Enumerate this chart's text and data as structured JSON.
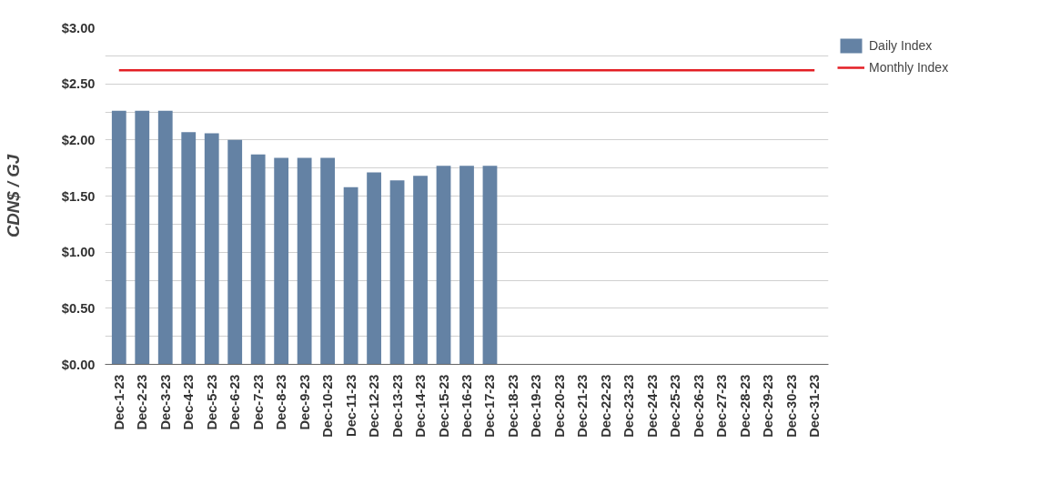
{
  "chart_data": {
    "type": "bar",
    "ylabel": "CDN$ / GJ",
    "categories": [
      "Dec-1-23",
      "Dec-2-23",
      "Dec-3-23",
      "Dec-4-23",
      "Dec-5-23",
      "Dec-6-23",
      "Dec-7-23",
      "Dec-8-23",
      "Dec-9-23",
      "Dec-10-23",
      "Dec-11-23",
      "Dec-12-23",
      "Dec-13-23",
      "Dec-14-23",
      "Dec-15-23",
      "Dec-16-23",
      "Dec-17-23",
      "Dec-18-23",
      "Dec-19-23",
      "Dec-20-23",
      "Dec-21-23",
      "Dec-22-23",
      "Dec-23-23",
      "Dec-24-23",
      "Dec-25-23",
      "Dec-26-23",
      "Dec-27-23",
      "Dec-28-23",
      "Dec-29-23",
      "Dec-30-23",
      "Dec-31-23"
    ],
    "series": [
      {
        "name": "Daily Index",
        "color": "#6482a4",
        "values": [
          2.26,
          2.26,
          2.26,
          2.07,
          2.06,
          2.0,
          1.87,
          1.84,
          1.84,
          1.84,
          1.58,
          1.71,
          1.64,
          1.68,
          1.77,
          1.77,
          1.77,
          null,
          null,
          null,
          null,
          null,
          null,
          null,
          null,
          null,
          null,
          null,
          null,
          null,
          null
        ]
      },
      {
        "name": "Monthly Index",
        "type": "line",
        "color": "#e31e24",
        "values": [
          2.62,
          2.62,
          2.62,
          2.62,
          2.62,
          2.62,
          2.62,
          2.62,
          2.62,
          2.62,
          2.62,
          2.62,
          2.62,
          2.62,
          2.62,
          2.62,
          2.62,
          2.62,
          2.62,
          2.62,
          2.62,
          2.62,
          2.62,
          2.62,
          2.62,
          2.62,
          2.62,
          2.62,
          2.62,
          2.62,
          2.62
        ]
      }
    ],
    "ylim": [
      0,
      3
    ],
    "yticks": [
      {
        "value": 0,
        "label": "$0.00"
      },
      {
        "value": 0.25,
        "label": null
      },
      {
        "value": 0.5,
        "label": "$0.50"
      },
      {
        "value": 0.75,
        "label": null
      },
      {
        "value": 1,
        "label": "$1.00"
      },
      {
        "value": 1.25,
        "label": null
      },
      {
        "value": 1.5,
        "label": "$1.50"
      },
      {
        "value": 1.75,
        "label": null
      },
      {
        "value": 2,
        "label": "$2.00"
      },
      {
        "value": 2.25,
        "label": null
      },
      {
        "value": 2.5,
        "label": "$2.50"
      },
      {
        "value": 2.75,
        "label": null
      },
      {
        "value": 3,
        "label": "$3.00"
      }
    ],
    "grid": "y",
    "legend": "right"
  }
}
